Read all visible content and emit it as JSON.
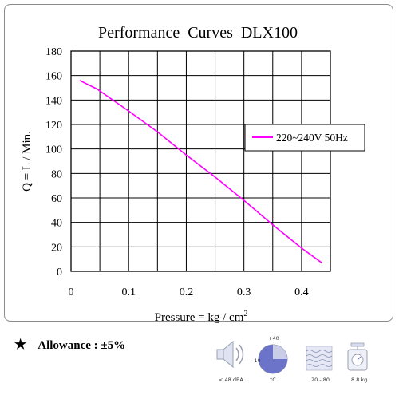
{
  "chart_data": {
    "type": "line",
    "title": "Performance  Curves  DLX100",
    "xlabel": "Pressure = kg / cm",
    "xlabel_sup": "2",
    "ylabel": "Q = L / Min.",
    "xlim": [
      0,
      0.45
    ],
    "ylim": [
      0,
      180
    ],
    "x_ticks": [
      "0",
      "0.1",
      "0.2",
      "0.3",
      "0.4"
    ],
    "x_tick_values": [
      0,
      0.1,
      0.2,
      0.3,
      0.4
    ],
    "y_ticks": [
      "0",
      "20",
      "40",
      "60",
      "80",
      "100",
      "120",
      "140",
      "160",
      "180"
    ],
    "y_tick_values": [
      0,
      20,
      40,
      60,
      80,
      100,
      120,
      140,
      160,
      180
    ],
    "grid": true,
    "legend_position": "right",
    "series": [
      {
        "name": "220~240V 50Hz",
        "color": "#ff00ff",
        "x": [
          0.015,
          0.045,
          0.1,
          0.15,
          0.2,
          0.25,
          0.3,
          0.35,
          0.4,
          0.435
        ],
        "y": [
          156,
          149,
          131,
          114,
          95,
          77,
          58,
          38,
          19,
          7
        ]
      }
    ]
  },
  "allowance": {
    "star": "★",
    "label": "Allowance : ±5%"
  },
  "icons": [
    {
      "name": "noise",
      "caption": "< 48 dBA"
    },
    {
      "name": "temperature",
      "caption": "°C",
      "top_value": "+40",
      "left_value": "-10"
    },
    {
      "name": "humidity",
      "caption": "20 - 80"
    },
    {
      "name": "weight",
      "caption": "8.8 kg"
    }
  ]
}
